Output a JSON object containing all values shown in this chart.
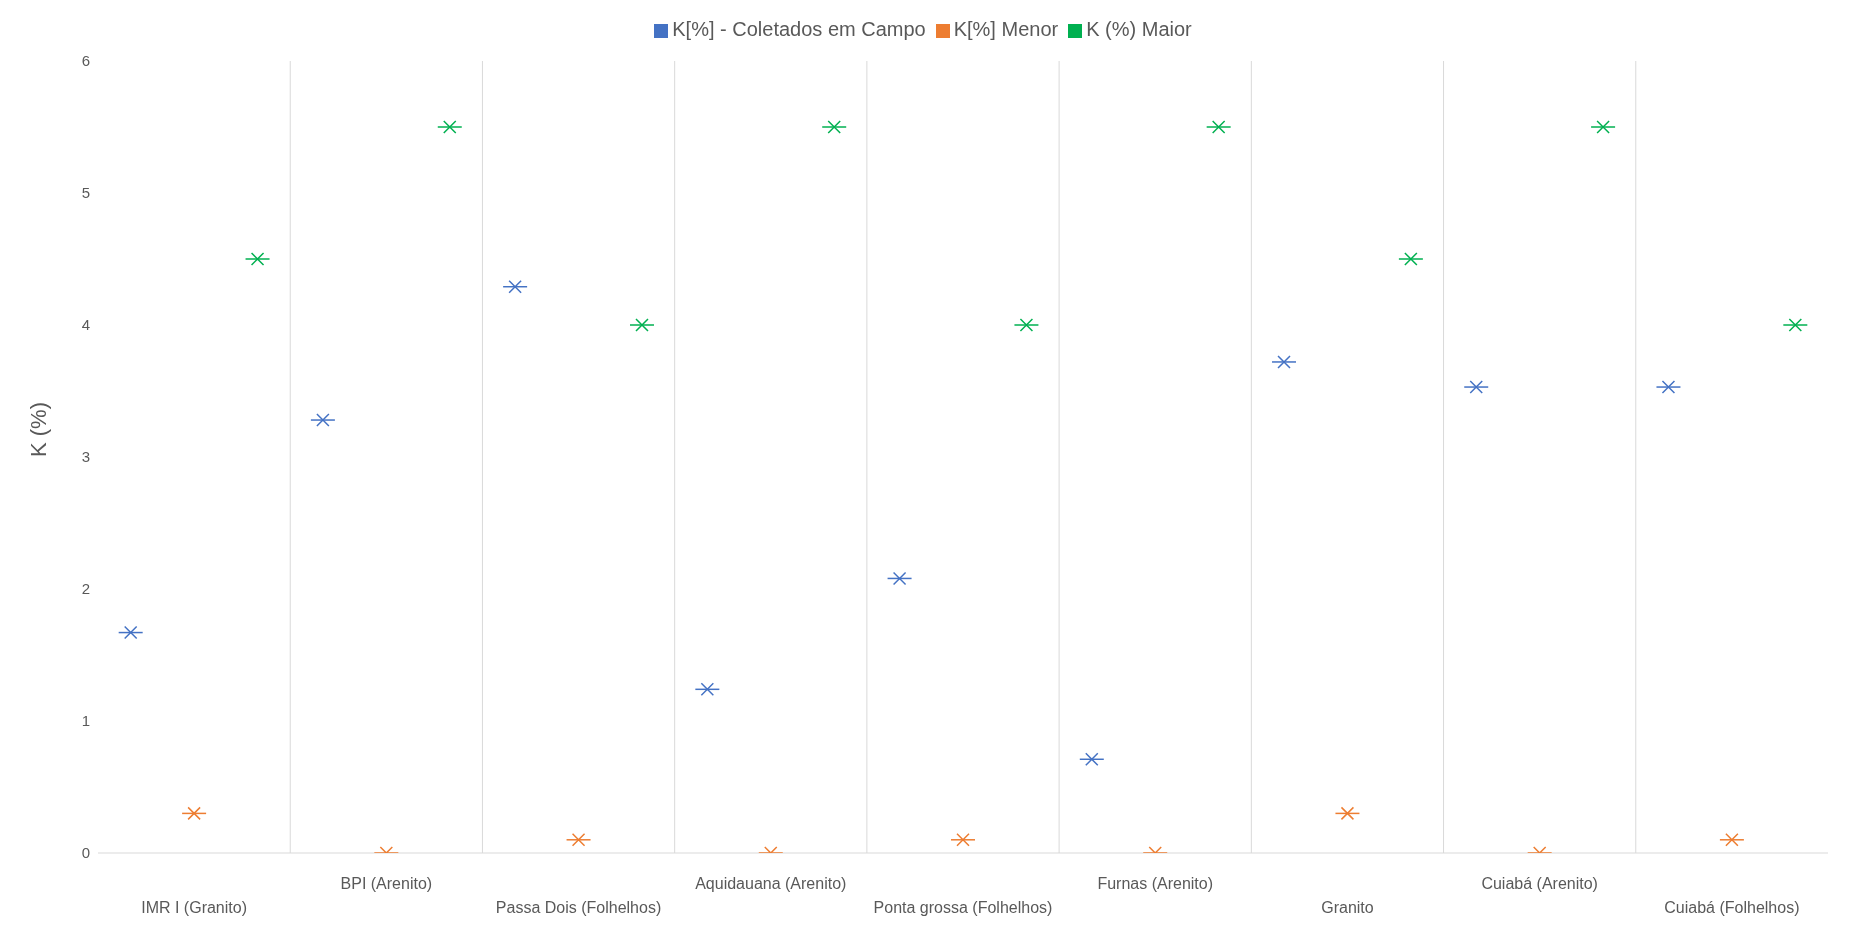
{
  "chart_data": {
    "type": "scatter",
    "ylabel": "K (%)",
    "categories": [
      "IMR I (Granito)",
      "BPI (Arenito)",
      "Passa Dois (Folhelhos)",
      "Aquidauana (Arenito)",
      "Ponta grossa (Folhelhos)",
      "Furnas (Arenito)",
      "Granito",
      "Cuiabá (Arenito)",
      "Cuiabá (Folhelhos)"
    ],
    "series": [
      {
        "name": "K[%] - Coletados em Campo",
        "color": "#4472c4",
        "values": [
          1.67,
          3.28,
          4.29,
          1.24,
          2.08,
          0.71,
          3.72,
          3.53,
          3.53
        ]
      },
      {
        "name": "K[%] Menor",
        "color": "#ed7d31",
        "values": [
          0.3,
          0,
          0.1,
          0,
          0.1,
          0,
          0.3,
          0,
          0.1
        ]
      },
      {
        "name": "K (%) Maior",
        "color": "#00b050",
        "values": [
          4.5,
          5.5,
          4.0,
          5.5,
          4.0,
          5.5,
          4.5,
          5.5,
          4.0
        ]
      }
    ],
    "ylim": [
      0,
      6
    ],
    "yticks": [
      0,
      1,
      2,
      3,
      4,
      5,
      6
    ],
    "grid": "x",
    "legend": "top",
    "marker": "cross"
  }
}
